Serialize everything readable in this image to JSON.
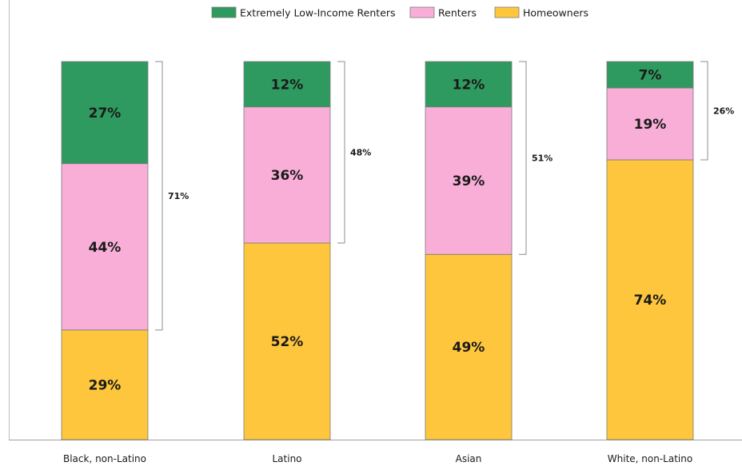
{
  "chart_data": {
    "type": "bar",
    "stacked": true,
    "categories": [
      "Black, non-Latino",
      "Latino",
      "Asian",
      "White, non-Latino"
    ],
    "series": [
      {
        "name": "Homeowners",
        "values": [
          29,
          52,
          49,
          74
        ],
        "labels": [
          "29%",
          "52%",
          "49%",
          "74%"
        ],
        "color": "#FEC63D"
      },
      {
        "name": "Renters",
        "values": [
          44,
          36,
          39,
          19
        ],
        "labels": [
          "44%",
          "36%",
          "39%",
          "19%"
        ],
        "color": "#F9AED8"
      },
      {
        "name": "Extremely Low-Income Renters",
        "values": [
          27,
          12,
          12,
          7
        ],
        "labels": [
          "27%",
          "12%",
          "12%",
          "7%"
        ],
        "color": "#2F9A5F"
      }
    ],
    "legend": {
      "position": "top-center",
      "order": [
        "Extremely Low-Income Renters",
        "Renters",
        "Homeowners"
      ]
    },
    "brackets": {
      "values": [
        71,
        48,
        51,
        26
      ],
      "labels": [
        "71%",
        "48%",
        "51%",
        "26%"
      ]
    },
    "ylim": [
      0,
      100
    ],
    "grid": false,
    "title": "",
    "xlabel": "",
    "ylabel": ""
  }
}
